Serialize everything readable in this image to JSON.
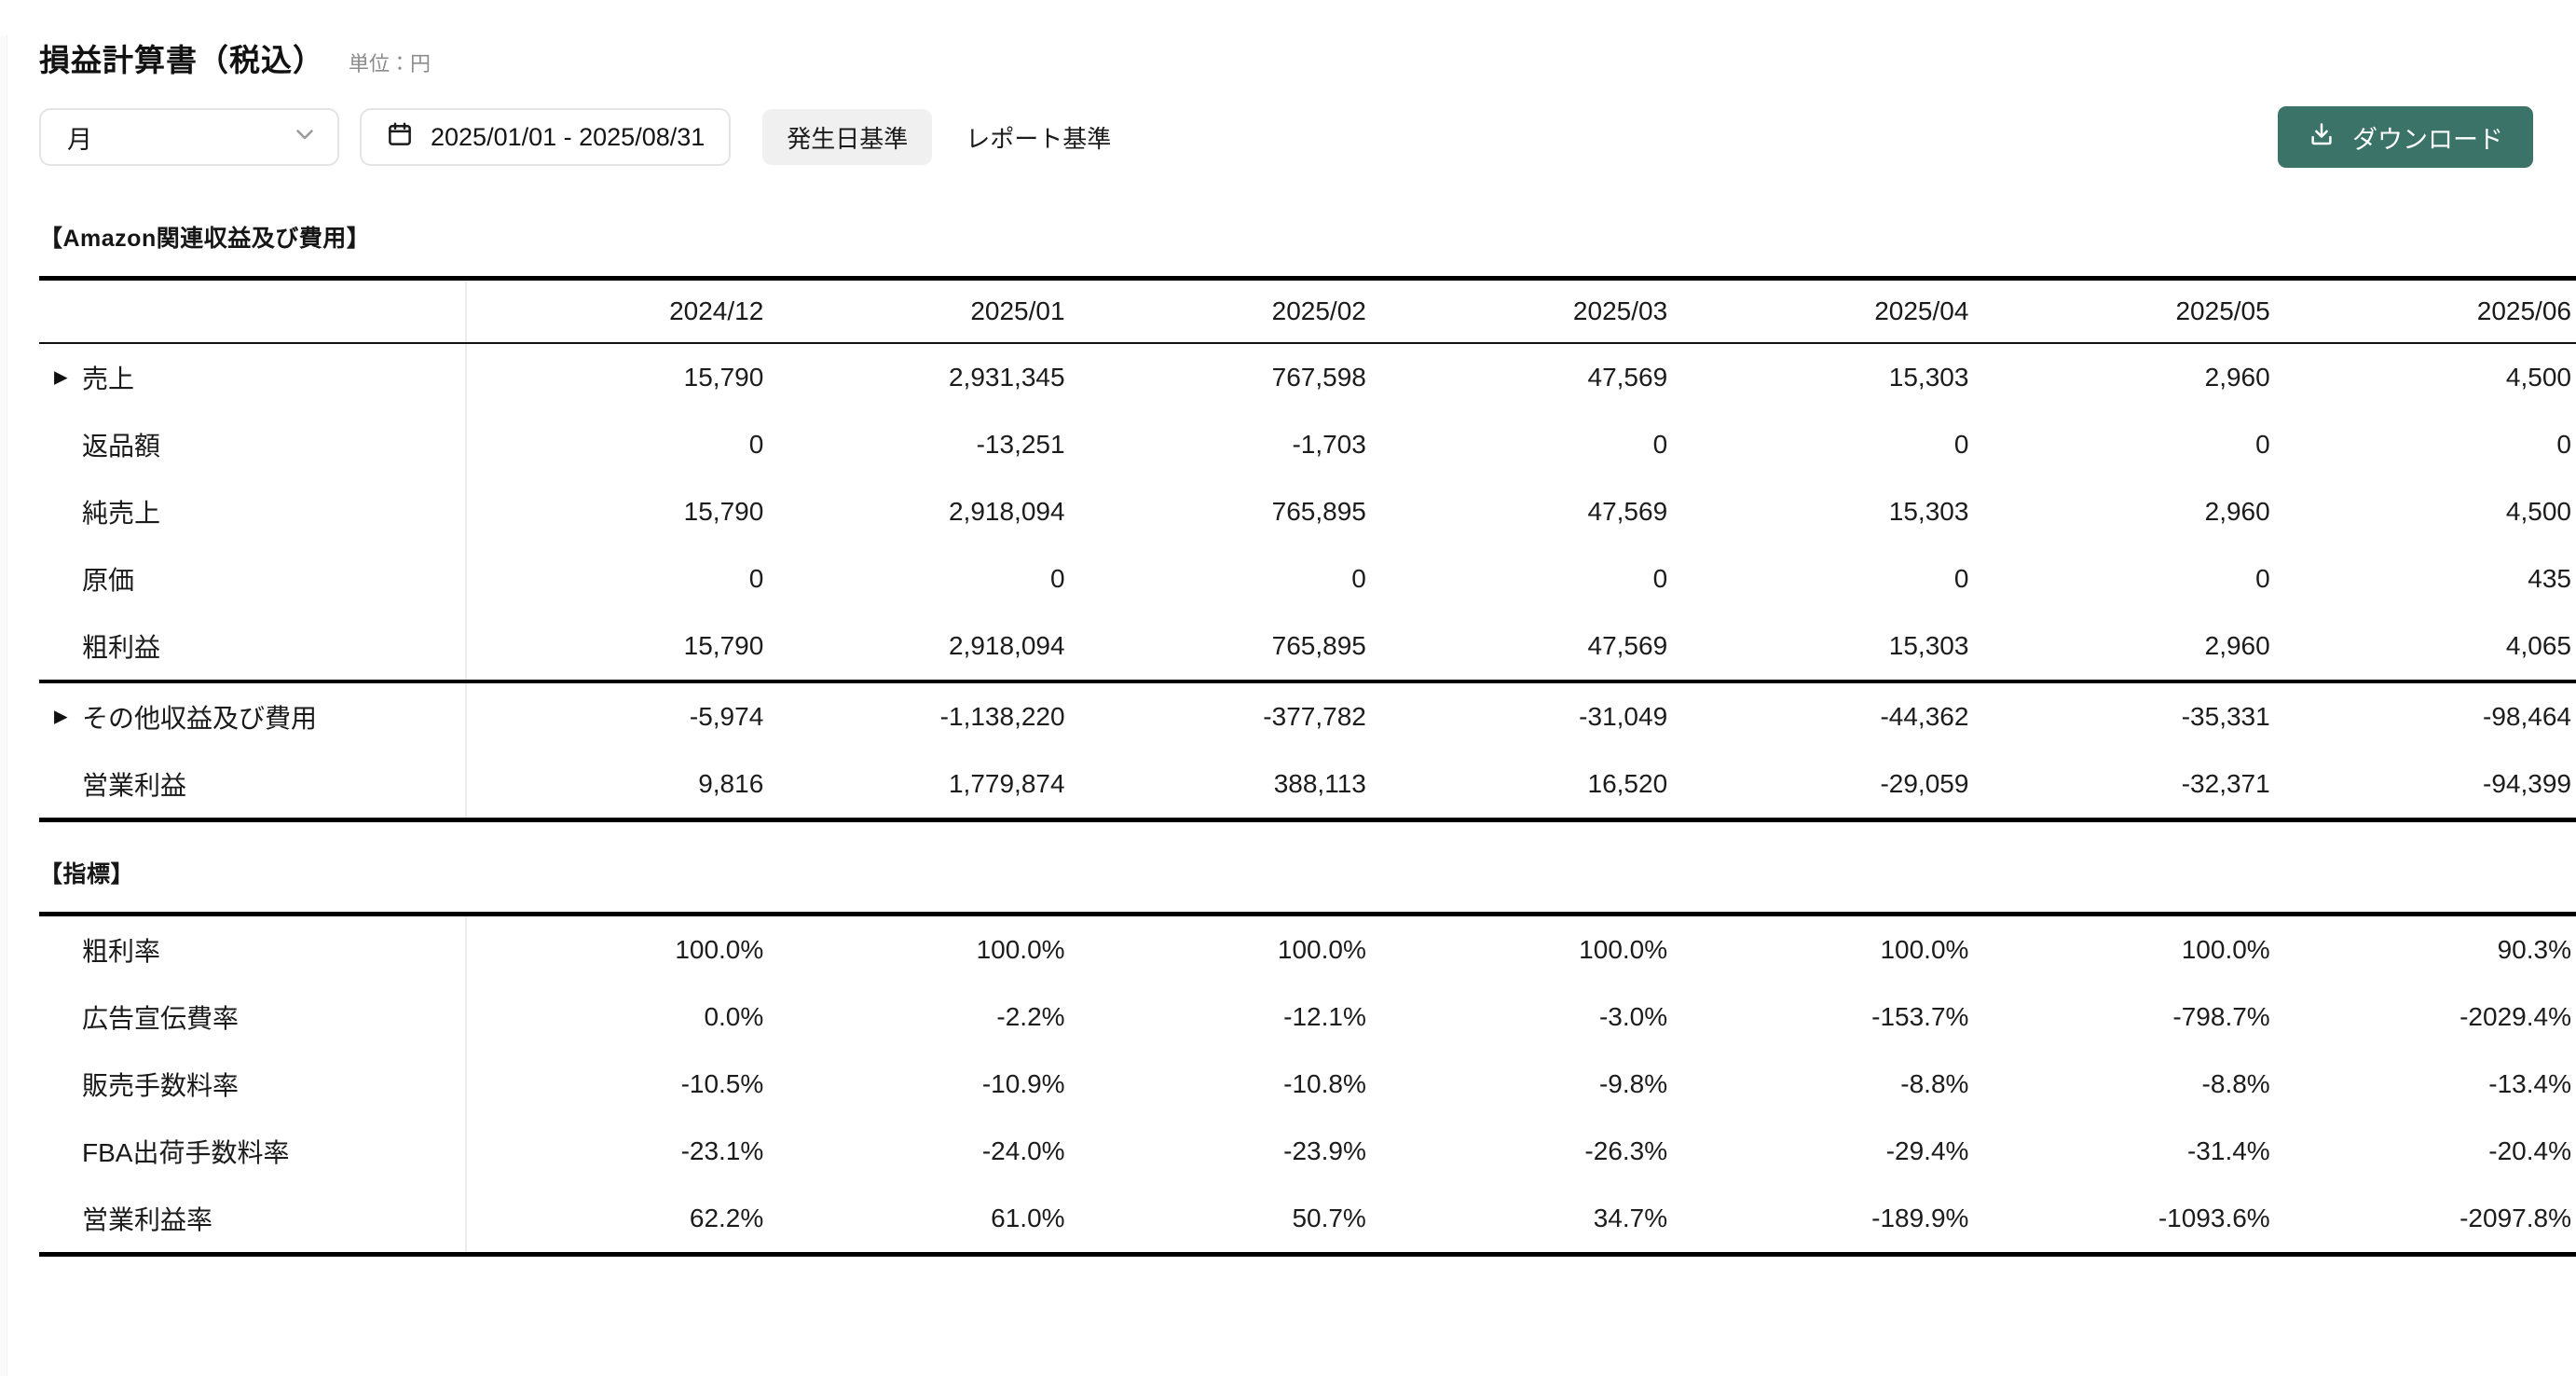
{
  "page": {
    "title": "損益計算書（税込）",
    "unit_label": "単位：円"
  },
  "toolbar": {
    "period_select": {
      "value": "月"
    },
    "date_range": {
      "value": "2025/01/01 - 2025/08/31"
    },
    "tabs": [
      {
        "label": "発生日基準",
        "selected": true
      },
      {
        "label": "レポート基準",
        "selected": false
      }
    ],
    "download_label": "ダウンロード"
  },
  "icons": {
    "expand": "▶",
    "chevron_down": "chevron-down",
    "calendar": "calendar",
    "download": "download-tray"
  },
  "colors": {
    "accent": "#3B7369",
    "tab_selected_bg": "#F0F0F0",
    "table_border": "#000000",
    "column_divider": "#ECECEC",
    "muted_text": "#8C8C8C"
  },
  "sections": [
    {
      "heading": "【Amazon関連収益及び費用】",
      "columns": [
        "2024/12",
        "2025/01",
        "2025/02",
        "2025/03",
        "2025/04",
        "2025/05",
        "2025/06"
      ],
      "groups": [
        {
          "rows": [
            {
              "label": "売上",
              "expandable": true,
              "values": [
                "15,790",
                "2,931,345",
                "767,598",
                "47,569",
                "15,303",
                "2,960",
                "4,500"
              ]
            },
            {
              "label": "返品額",
              "expandable": false,
              "values": [
                "0",
                "-13,251",
                "-1,703",
                "0",
                "0",
                "0",
                "0"
              ]
            },
            {
              "label": "純売上",
              "expandable": false,
              "values": [
                "15,790",
                "2,918,094",
                "765,895",
                "47,569",
                "15,303",
                "2,960",
                "4,500"
              ]
            },
            {
              "label": "原価",
              "expandable": false,
              "values": [
                "0",
                "0",
                "0",
                "0",
                "0",
                "0",
                "435"
              ]
            },
            {
              "label": "粗利益",
              "expandable": false,
              "values": [
                "15,790",
                "2,918,094",
                "765,895",
                "47,569",
                "15,303",
                "2,960",
                "4,065"
              ]
            }
          ]
        },
        {
          "rows": [
            {
              "label": "その他収益及び費用",
              "expandable": true,
              "values": [
                "-5,974",
                "-1,138,220",
                "-377,782",
                "-31,049",
                "-44,362",
                "-35,331",
                "-98,464"
              ]
            },
            {
              "label": "営業利益",
              "expandable": false,
              "values": [
                "9,816",
                "1,779,874",
                "388,113",
                "16,520",
                "-29,059",
                "-32,371",
                "-94,399"
              ]
            }
          ]
        }
      ]
    },
    {
      "heading": "【指標】",
      "columns": null,
      "groups": [
        {
          "rows": [
            {
              "label": "粗利率",
              "expandable": false,
              "values": [
                "100.0%",
                "100.0%",
                "100.0%",
                "100.0%",
                "100.0%",
                "100.0%",
                "90.3%"
              ]
            },
            {
              "label": "広告宣伝費率",
              "expandable": false,
              "values": [
                "0.0%",
                "-2.2%",
                "-12.1%",
                "-3.0%",
                "-153.7%",
                "-798.7%",
                "-2029.4%"
              ]
            },
            {
              "label": "販売手数料率",
              "expandable": false,
              "values": [
                "-10.5%",
                "-10.9%",
                "-10.8%",
                "-9.8%",
                "-8.8%",
                "-8.8%",
                "-13.4%"
              ]
            },
            {
              "label": "FBA出荷手数料率",
              "expandable": false,
              "values": [
                "-23.1%",
                "-24.0%",
                "-23.9%",
                "-26.3%",
                "-29.4%",
                "-31.4%",
                "-20.4%"
              ]
            },
            {
              "label": "営業利益率",
              "expandable": false,
              "values": [
                "62.2%",
                "61.0%",
                "50.7%",
                "34.7%",
                "-189.9%",
                "-1093.6%",
                "-2097.8%"
              ]
            }
          ]
        }
      ]
    }
  ]
}
